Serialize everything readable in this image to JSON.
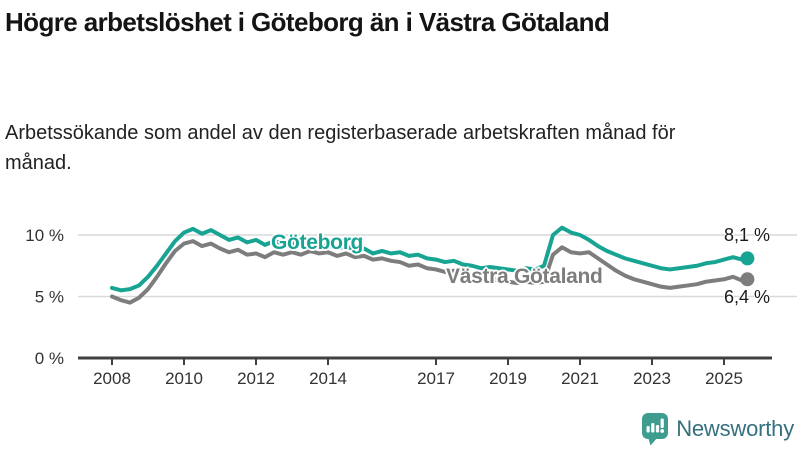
{
  "title": "Högre arbetslöshet i Göteborg än i Västra Götaland",
  "subtitle": "Arbetssökande som andel av den registerbaserade arbetskraften månad för månad.",
  "branding": {
    "name": "Newsworthy",
    "icon": "bar-chart-speech-bubble-icon",
    "icon_color": "#3f9d90",
    "wordmark_color": "#35707e"
  },
  "chart_data": {
    "type": "line",
    "title": "",
    "xlabel": "",
    "ylabel": "",
    "legend": "inline-labels-on-lines",
    "grid": "horizontal-only",
    "grid_color": "#d9d9d9",
    "axis_color": "#404040",
    "tick_text_color": "#333333",
    "x_range": [
      2008,
      2025.75
    ],
    "ylim": [
      0,
      11.5
    ],
    "y_ticks": [
      {
        "value": 0,
        "label": "0 %"
      },
      {
        "value": 5,
        "label": "5 %"
      },
      {
        "value": 10,
        "label": "10 %"
      }
    ],
    "x_ticks": [
      "2008",
      "2010",
      "2012",
      "2014",
      "2017",
      "2019",
      "2021",
      "2023",
      "2025"
    ],
    "x": [
      2008,
      2008.25,
      2008.5,
      2008.75,
      2009,
      2009.25,
      2009.5,
      2009.75,
      2010,
      2010.25,
      2010.5,
      2010.75,
      2011,
      2011.25,
      2011.5,
      2011.75,
      2012,
      2012.25,
      2012.5,
      2012.75,
      2013,
      2013.25,
      2013.5,
      2013.75,
      2014,
      2014.25,
      2014.5,
      2014.75,
      2015,
      2015.25,
      2015.5,
      2015.75,
      2016,
      2016.25,
      2016.5,
      2016.75,
      2017,
      2017.25,
      2017.5,
      2017.75,
      2018,
      2018.25,
      2018.5,
      2018.75,
      2019,
      2019.25,
      2019.5,
      2019.75,
      2020,
      2020.25,
      2020.5,
      2020.75,
      2021,
      2021.25,
      2021.5,
      2021.75,
      2022,
      2022.25,
      2022.5,
      2022.75,
      2023,
      2023.25,
      2023.5,
      2023.75,
      2024,
      2024.25,
      2024.5,
      2024.75,
      2025,
      2025.25,
      2025.5,
      2025.65
    ],
    "series": [
      {
        "id": "goteborg",
        "name": "Göteborg",
        "color": "#18a493",
        "end_label": "8,1 %",
        "end_value": 8.1,
        "values": [
          5.7,
          5.5,
          5.6,
          5.9,
          6.6,
          7.5,
          8.5,
          9.5,
          10.2,
          10.5,
          10.1,
          10.4,
          10.0,
          9.6,
          9.8,
          9.4,
          9.6,
          9.2,
          9.5,
          9.3,
          9.4,
          9.1,
          9.3,
          9.0,
          9.2,
          8.9,
          9.1,
          8.8,
          8.9,
          8.5,
          8.7,
          8.5,
          8.6,
          8.3,
          8.4,
          8.1,
          8.0,
          7.8,
          7.9,
          7.6,
          7.5,
          7.3,
          7.4,
          7.3,
          7.2,
          7.1,
          7.3,
          7.2,
          7.5,
          10.0,
          10.6,
          10.2,
          10.0,
          9.6,
          9.1,
          8.7,
          8.4,
          8.1,
          7.9,
          7.7,
          7.5,
          7.3,
          7.2,
          7.3,
          7.4,
          7.5,
          7.7,
          7.8,
          8.0,
          8.2,
          8.0,
          8.1
        ]
      },
      {
        "id": "vastra-gotaland",
        "name": "Västra Götaland",
        "color": "#7d7d7d",
        "end_label": "6,4 %",
        "end_value": 6.4,
        "values": [
          5.0,
          4.7,
          4.5,
          4.9,
          5.6,
          6.6,
          7.7,
          8.7,
          9.3,
          9.5,
          9.1,
          9.3,
          8.9,
          8.6,
          8.8,
          8.4,
          8.5,
          8.2,
          8.6,
          8.4,
          8.6,
          8.4,
          8.7,
          8.5,
          8.6,
          8.3,
          8.5,
          8.2,
          8.3,
          8.0,
          8.1,
          7.9,
          7.8,
          7.5,
          7.6,
          7.3,
          7.2,
          7.0,
          7.1,
          6.8,
          6.6,
          6.4,
          6.5,
          6.3,
          6.2,
          6.1,
          6.2,
          6.1,
          6.2,
          8.4,
          9.0,
          8.6,
          8.5,
          8.6,
          8.1,
          7.6,
          7.1,
          6.7,
          6.4,
          6.2,
          6.0,
          5.8,
          5.7,
          5.8,
          5.9,
          6.0,
          6.2,
          6.3,
          6.4,
          6.6,
          6.3,
          6.4
        ]
      }
    ]
  }
}
